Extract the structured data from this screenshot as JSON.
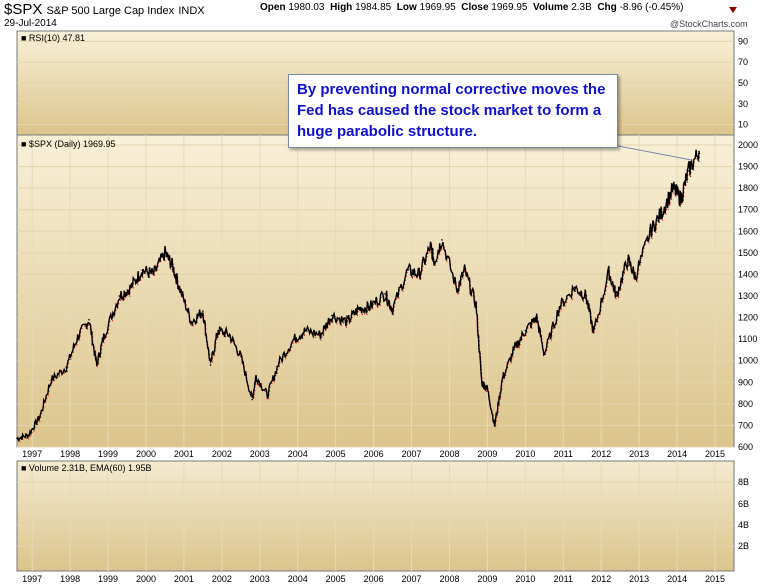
{
  "header": {
    "symbol": "$SPX",
    "name": "S&P 500 Large Cap Index",
    "exchange": "INDX",
    "date": "29-Jul-2014",
    "watermark": "@StockCharts.com",
    "open_label": "Open",
    "open": "1980.03",
    "high_label": "High",
    "high": "1984.85",
    "low_label": "Low",
    "low": "1969.95",
    "close_label": "Close",
    "close": "1969.95",
    "volume_label": "Volume",
    "volume": "2.3B",
    "chg_label": "Chg",
    "chg": "-8.96 (-0.45%)"
  },
  "colors": {
    "panel_top": "#f8f0d8",
    "panel_bottom": "#dcc48c",
    "price_line": "#000000",
    "down_marks": "#cc0000",
    "callout_text": "#1010d0"
  },
  "callout_text": "By preventing normal corrective moves the Fed has caused the stock market to form a huge parabolic structure.",
  "chart_data": [
    {
      "type": "line",
      "panel": "RSI",
      "legend": "RSI(10) 47.81",
      "yticks": [
        10,
        30,
        50,
        70,
        90
      ],
      "ylim": [
        0,
        100
      ],
      "values": []
    },
    {
      "type": "line",
      "panel": "price",
      "legend": "$SPX (Daily) 1969.95",
      "xticks": [
        "1997",
        "1998",
        "1999",
        "2000",
        "2001",
        "2002",
        "2003",
        "2004",
        "2005",
        "2006",
        "2007",
        "2008",
        "2009",
        "2010",
        "2011",
        "2012",
        "2013",
        "2014",
        "2015"
      ],
      "yticks": [
        600,
        700,
        800,
        900,
        1000,
        1100,
        1200,
        1300,
        1400,
        1500,
        1600,
        1700,
        1800,
        1900,
        2000
      ],
      "ylim": [
        600,
        2000
      ],
      "x": [
        1996.6,
        1996.9,
        1997.2,
        1997.5,
        1997.9,
        1998.2,
        1998.5,
        1998.7,
        1998.9,
        1999.3,
        1999.6,
        1999.9,
        2000.2,
        2000.5,
        2000.7,
        2000.9,
        2001.2,
        2001.5,
        2001.7,
        2001.9,
        2002.2,
        2002.5,
        2002.8,
        2002.9,
        2003.2,
        2003.5,
        2003.9,
        2004.2,
        2004.6,
        2004.9,
        2005.3,
        2005.6,
        2005.9,
        2006.3,
        2006.5,
        2006.9,
        2007.2,
        2007.5,
        2007.6,
        2007.8,
        2008.2,
        2008.4,
        2008.7,
        2008.85,
        2009.0,
        2009.19,
        2009.4,
        2009.7,
        2010.0,
        2010.3,
        2010.5,
        2010.9,
        2011.3,
        2011.6,
        2011.8,
        2012.2,
        2012.4,
        2012.7,
        2012.9,
        2013.3,
        2013.6,
        2013.9,
        2014.1,
        2014.3,
        2014.58
      ],
      "values": [
        640,
        655,
        740,
        910,
        970,
        1110,
        1190,
        980,
        1120,
        1300,
        1340,
        1420,
        1400,
        1500,
        1440,
        1330,
        1180,
        1230,
        980,
        1140,
        1120,
        1020,
        820,
        930,
        840,
        990,
        1100,
        1140,
        1120,
        1210,
        1180,
        1240,
        1250,
        1310,
        1240,
        1420,
        1400,
        1530,
        1460,
        1560,
        1330,
        1420,
        1260,
        900,
        870,
        700,
        920,
        1050,
        1140,
        1200,
        1030,
        1250,
        1340,
        1300,
        1130,
        1410,
        1300,
        1470,
        1390,
        1600,
        1690,
        1800,
        1750,
        1880,
        1970
      ],
      "annotations": [
        "By preventing normal corrective moves the Fed has caused the stock market to form a huge parabolic structure."
      ]
    },
    {
      "type": "bar",
      "panel": "volume",
      "legend": "Volume 2.31B, EMA(60) 1.95B",
      "yticks": [
        "2B",
        "4B",
        "6B",
        "8B"
      ],
      "values": []
    }
  ]
}
